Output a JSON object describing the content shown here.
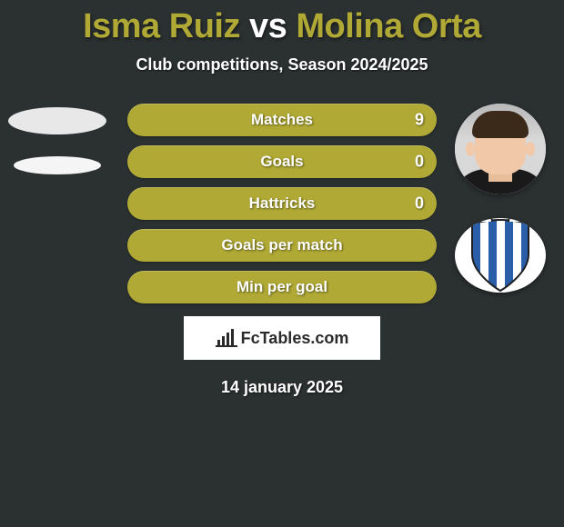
{
  "background_color": "#2b3031",
  "title": {
    "player1": "Isma Ruiz",
    "vs": "vs",
    "player2": "Molina Orta",
    "player1_color": "#b0a935",
    "vs_color": "#ffffff",
    "player2_color": "#b0a935",
    "fontsize": 38
  },
  "subtitle": {
    "text": "Club competitions, Season 2024/2025",
    "color": "#ffffff",
    "fontsize": 18
  },
  "stats": {
    "pill_color": "#b0a935",
    "pill_text_color": "#ffffff",
    "pill_height": 36,
    "pill_radius": 18,
    "pill_fontsize": 17,
    "rows": [
      {
        "label": "Matches",
        "right_value": "9"
      },
      {
        "label": "Goals",
        "right_value": "0"
      },
      {
        "label": "Hattricks",
        "right_value": "0"
      },
      {
        "label": "Goals per match",
        "right_value": ""
      },
      {
        "label": "Min per goal",
        "right_value": ""
      }
    ]
  },
  "left_avatars": {
    "ellipse1_color": "#e8e8e8",
    "ellipse2_color": "#f5f5f5"
  },
  "right_avatars": {
    "player_bg": "#ffffff",
    "crest_bg": "#ffffff",
    "crest_stripes": [
      "#2b5ea8",
      "#ffffff"
    ],
    "crest_border": "#1f1f1f"
  },
  "logo": {
    "icon_name": "bar-chart-icon",
    "text": "FcTables.com",
    "box_bg": "#ffffff",
    "text_color": "#2a2a2a"
  },
  "date": {
    "text": "14 january 2025",
    "color": "#ffffff",
    "fontsize": 18
  }
}
